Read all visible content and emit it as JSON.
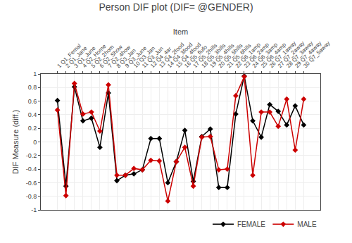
{
  "chart_data": {
    "type": "line",
    "title": "Person DIF plot (DIF= @GENDER)",
    "subtitle": "Item",
    "ylabel": "DIF Measure (diff.)",
    "categories": [
      "1 Q1_Femal",
      "2 Q1_Jane",
      "3 Q1_June",
      "4 Q2_Home",
      "5 Q2_2hom",
      "6 Q2_Show",
      "7 Q2_4how",
      "8 Q3_Jan",
      "9 Q3_June",
      "10 Q3_Jan",
      "11 Q3_Jun",
      "12 Q4_4ar",
      "13 Q4_2food",
      "14 Q4_3food",
      "15 Q4_4food",
      "16 Q5_flufo",
      "17 Q5_2hills",
      "18 Q5_3hills",
      "19 Q5_4hills",
      "20 Q5_5hills",
      "21 Q5_6hills",
      "22 Q6_1amp",
      "23 Q6_2amp",
      "24 Q6_3amp",
      "25 Q6_4amp",
      "26 Q7_1away",
      "27 Q7_2away",
      "28 Q7_3away",
      "29 Q7_4away",
      "30 Q7_5away"
    ],
    "series": [
      {
        "name": "FEMALE",
        "color": "#000000",
        "marker": "diamond",
        "values": [
          0.61,
          -0.65,
          0.81,
          0.31,
          0.35,
          -0.08,
          0.72,
          -0.57,
          -0.49,
          -0.47,
          -0.41,
          0.05,
          0.05,
          -0.6,
          -0.29,
          0.17,
          -0.58,
          0.08,
          0.19,
          -0.67,
          -0.67,
          0.41,
          0.97,
          0.31,
          0.07,
          0.55,
          0.45,
          0.25,
          0.53,
          0.25
        ]
      },
      {
        "name": "MALE",
        "color": "#cc0000",
        "marker": "diamond",
        "values": [
          0.47,
          -0.79,
          0.86,
          0.41,
          0.44,
          0.16,
          0.84,
          -0.49,
          -0.49,
          -0.39,
          -0.41,
          -0.27,
          -0.28,
          -0.87,
          -0.29,
          -0.08,
          -0.65,
          0.07,
          0.08,
          -0.41,
          -0.4,
          0.68,
          0.96,
          -0.49,
          0.44,
          0.44,
          0.23,
          0.63,
          -0.12,
          0.63
        ]
      }
    ],
    "ylim": [
      -1,
      1
    ],
    "yticks": [
      -1,
      -0.8,
      -0.6,
      -0.4,
      -0.2,
      0,
      0.2,
      0.4,
      0.6,
      0.8,
      1
    ],
    "grid": true,
    "legend": "lower right"
  }
}
